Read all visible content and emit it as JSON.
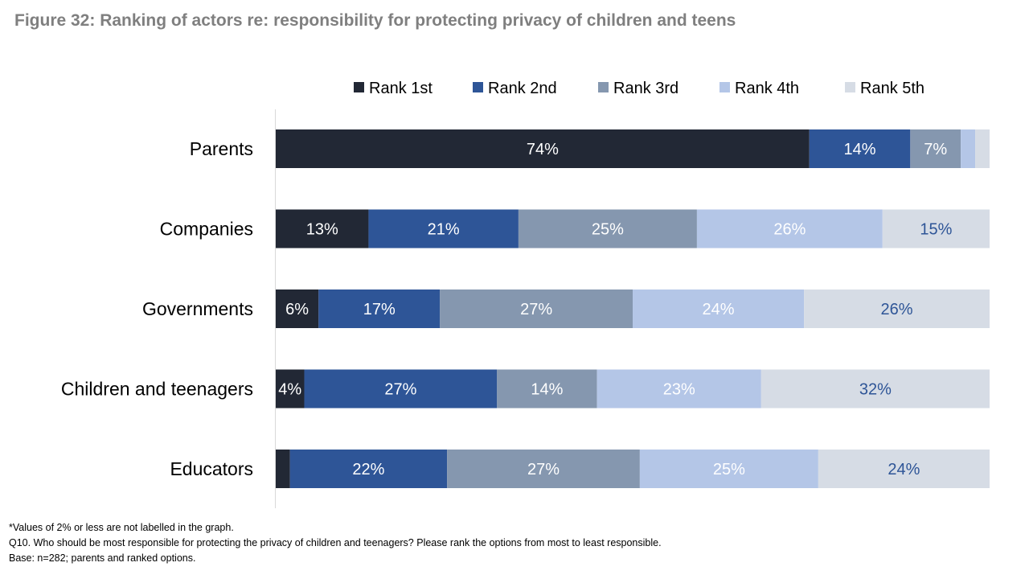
{
  "title": "Figure 32: Ranking of actors re: responsibility for protecting privacy of children and teens",
  "chart_data": {
    "type": "bar",
    "orientation": "horizontal",
    "stacked": true,
    "normalized_percent": true,
    "categories": [
      "Parents",
      "Companies",
      "Governments",
      "Children and teenagers",
      "Educators"
    ],
    "series": [
      {
        "name": "Rank 1st",
        "color": "#222835",
        "label_color": "#ffffff",
        "values": [
          74,
          13,
          6,
          4,
          2
        ]
      },
      {
        "name": "Rank 2nd",
        "color": "#2e5597",
        "label_color": "#ffffff",
        "values": [
          14,
          21,
          17,
          27,
          22
        ]
      },
      {
        "name": "Rank 3rd",
        "color": "#8597af",
        "label_color": "#ffffff",
        "values": [
          7,
          25,
          27,
          14,
          27
        ]
      },
      {
        "name": "Rank 4th",
        "color": "#b4c6e7",
        "label_color": "#ffffff",
        "values": [
          2,
          26,
          24,
          23,
          25
        ]
      },
      {
        "name": "Rank 5th",
        "color": "#d6dce5",
        "label_color": "#2e5597",
        "values": [
          2,
          15,
          26,
          32,
          24
        ]
      }
    ],
    "label_threshold": 2,
    "value_suffix": "%",
    "legend_position": "top",
    "xlim": [
      0,
      100
    ],
    "grid": false
  },
  "footnotes": [
    "*Values of 2% or less are not labelled in the graph.",
    "Q10. Who should be most responsible for protecting the privacy of children and teenagers? Please rank the options from most to least responsible.",
    "Base: n=282; parents and ranked options."
  ]
}
